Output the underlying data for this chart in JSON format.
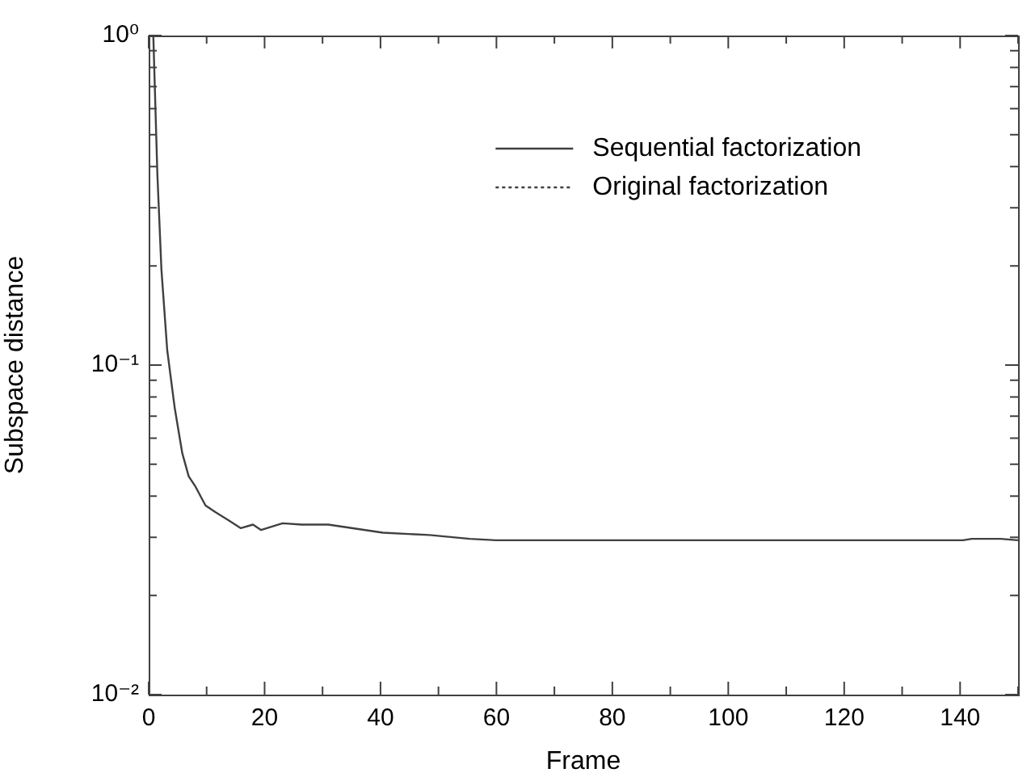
{
  "chart_data": {
    "type": "line",
    "xlabel": "Frame",
    "ylabel": "Subspace distance",
    "log": "y",
    "grid": false,
    "legend": "top right",
    "marker": "none",
    "xlim": [
      0,
      150
    ],
    "xticks": [
      0,
      {
        "value": 10,
        "label": null
      },
      20,
      {
        "value": 30,
        "label": null
      },
      40,
      {
        "value": 50,
        "label": null
      },
      60,
      {
        "value": 70,
        "label": null
      },
      80,
      {
        "value": 90,
        "label": null
      },
      100,
      {
        "value": 110,
        "label": null
      },
      120,
      {
        "value": 130,
        "label": null
      },
      140,
      {
        "value": 150,
        "label": null
      }
    ],
    "ylim": [
      0.01,
      1
    ],
    "yticks": [
      {
        "value": 0.01,
        "label": "10⁻²"
      },
      {
        "value": 0.02,
        "label": null
      },
      {
        "value": 0.03,
        "label": null
      },
      {
        "value": 0.04,
        "label": null
      },
      {
        "value": 0.05,
        "label": null
      },
      {
        "value": 0.06,
        "label": null
      },
      {
        "value": 0.07,
        "label": null
      },
      {
        "value": 0.08,
        "label": null
      },
      {
        "value": 0.09,
        "label": null
      },
      {
        "value": 0.1,
        "label": "10⁻¹"
      },
      {
        "value": 0.2,
        "label": null
      },
      {
        "value": 0.3,
        "label": null
      },
      {
        "value": 0.4,
        "label": null
      },
      {
        "value": 0.5,
        "label": null
      },
      {
        "value": 0.6,
        "label": null
      },
      {
        "value": 0.7,
        "label": null
      },
      {
        "value": 0.8,
        "label": null
      },
      {
        "value": 0.9,
        "label": null
      },
      {
        "value": 1,
        "label": "10⁰"
      }
    ],
    "series": [
      {
        "name": "Sequential factorization",
        "color": "#404040",
        "line_style": "solid",
        "x": [
          0.8,
          1.5,
          2.2,
          3.2,
          4.5,
          5.8,
          6.9,
          8,
          9.8,
          11.5,
          13.8,
          15.9,
          18,
          19.4,
          23.1,
          26.4,
          31,
          40.4,
          48.4,
          55.4,
          59.9,
          140.5,
          142,
          147,
          150
        ],
        "values": [
          1,
          0.38,
          0.195,
          0.111,
          0.074,
          0.054,
          0.046,
          0.043,
          0.0375,
          0.0358,
          0.0338,
          0.032,
          0.0328,
          0.0316,
          0.0331,
          0.0328,
          0.0328,
          0.031,
          0.0305,
          0.0297,
          0.0294,
          0.0294,
          0.0297,
          0.0297,
          0.0294
        ]
      },
      {
        "name": "Original factorization",
        "color": "#404040",
        "line_style": "dotted"
      }
    ]
  }
}
